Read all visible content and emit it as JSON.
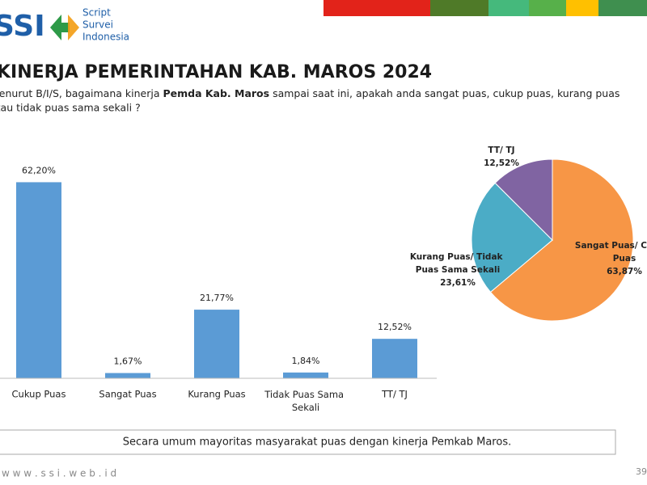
{
  "logo": {
    "mark": "SSI",
    "lines": [
      "Script",
      "Survei",
      "Indonesia"
    ]
  },
  "title": "KINERJA PEMERINTAHAN KAB. MAROS 2024",
  "question": [
    "Menurut B/I/S, bagaimana kinerja ",
    "Pemda Kab. Maros",
    " sampai saat ini, apakah anda sangat puas, cukup puas, kurang puas",
    "atau tidak puas sama sekali ?"
  ],
  "chart_data": [
    {
      "type": "bar",
      "categories": [
        "Cukup Puas",
        "Sangat Puas",
        "Kurang Puas",
        "Tidak Puas Sama Sekali",
        "TT/ TJ"
      ],
      "values": [
        62.2,
        1.67,
        21.77,
        1.84,
        12.52
      ],
      "value_labels": [
        "62,20%",
        "1,67%",
        "21,77%",
        "1,84%",
        "12,52%"
      ],
      "color": "#5b9bd5",
      "ylim": [
        0,
        70
      ]
    },
    {
      "type": "pie",
      "categories": [
        "Sangat Puas/ Cukup Puas",
        "Kurang Puas/ Tidak Puas Sama Sekali",
        "TT/ TJ"
      ],
      "values": [
        63.87,
        23.61,
        12.52
      ],
      "value_labels": [
        "63,87%",
        "23,61%",
        "12,52%"
      ],
      "colors": [
        "#f79646",
        "#4bacc6",
        "#8064a2"
      ]
    }
  ],
  "conclusion": "Secara umum mayoritas masyarakat puas dengan kinerja Pemkab Maros.",
  "website": "w w w . s s i . w e b . i d",
  "page_number": "39"
}
